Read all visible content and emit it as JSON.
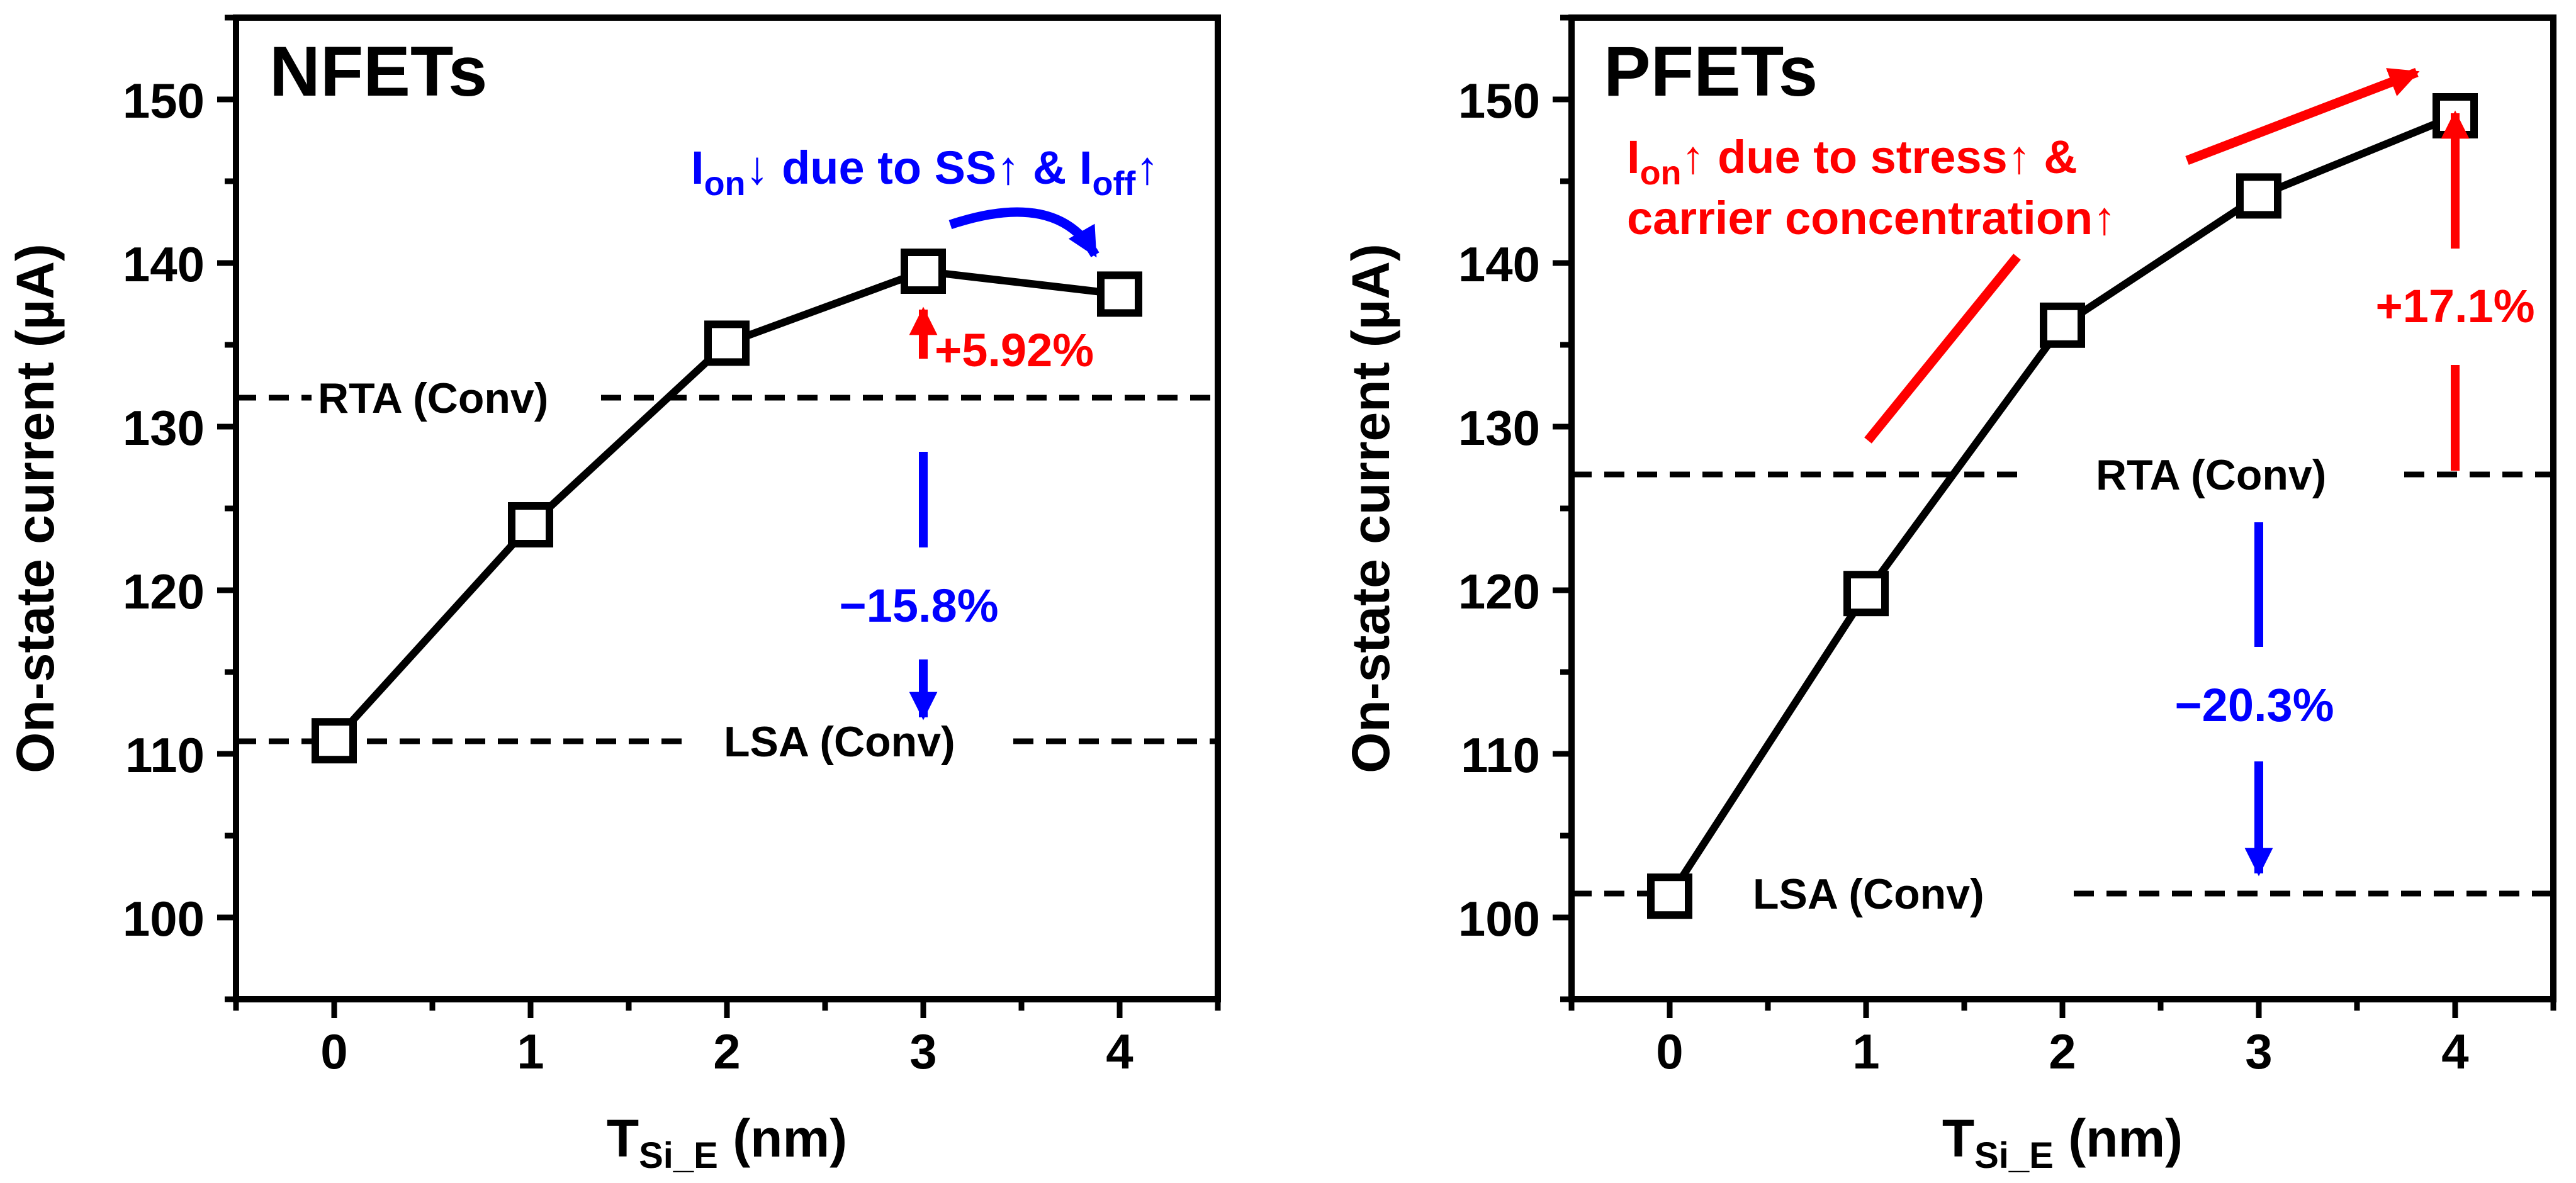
{
  "chart_data": [
    {
      "type": "line",
      "title": "NFETs",
      "xlabel": {
        "main": "T",
        "sub": "Si_E",
        "unit": " (nm)"
      },
      "ylabel": "On-state current (µA)",
      "x": [
        0,
        1,
        2,
        3,
        4
      ],
      "y": [
        110.8,
        124.0,
        135.1,
        139.5,
        138.1
      ],
      "xlim": [
        -0.5,
        4.5
      ],
      "ylim": [
        95,
        155
      ],
      "xticks": [
        "0",
        "1",
        "2",
        "3",
        "4"
      ],
      "yticks": [
        "100",
        "110",
        "120",
        "130",
        "140",
        "150"
      ],
      "references": [
        {
          "label": "RTA (Conv)",
          "value": 131.6
        },
        {
          "label": "LSA (Conv)",
          "value": 110.6
        }
      ],
      "annotations": {
        "ion_note": {
          "prefix": "I",
          "sub1": "on",
          "middle": "↓ due to SS↑ & I",
          "sub2": "off",
          "suffix": "↑",
          "color": "#0000ff"
        },
        "pct_rta": {
          "text": "+5.92%",
          "color": "#ff0000"
        },
        "pct_lsa": {
          "text": "−15.8%",
          "color": "#0000ff"
        }
      }
    },
    {
      "type": "line",
      "title": "PFETs",
      "xlabel": {
        "main": "T",
        "sub": "Si_E",
        "unit": " (nm)"
      },
      "ylabel": "On-state current (µA)",
      "x": [
        0,
        1,
        2,
        3,
        4
      ],
      "y": [
        101.3,
        119.8,
        136.2,
        144.1,
        149.0
      ],
      "xlim": [
        -0.5,
        4.5
      ],
      "ylim": [
        95,
        155
      ],
      "xticks": [
        "0",
        "1",
        "2",
        "3",
        "4"
      ],
      "yticks": [
        "100",
        "110",
        "120",
        "130",
        "140",
        "150"
      ],
      "references": [
        {
          "label": "RTA (Conv)",
          "value": 127.0
        },
        {
          "label": "LSA (Conv)",
          "value": 101.4
        }
      ],
      "annotations": {
        "ion_note": {
          "prefix": "I",
          "sub1": "on",
          "line1": "↑ due to stress↑ &",
          "line2": "carrier concentration↑",
          "color": "#ff0000"
        },
        "pct_rta": {
          "text": "+17.1%",
          "color": "#ff0000"
        },
        "pct_lsa": {
          "text": "−20.3%",
          "color": "#0000ff"
        }
      }
    }
  ]
}
